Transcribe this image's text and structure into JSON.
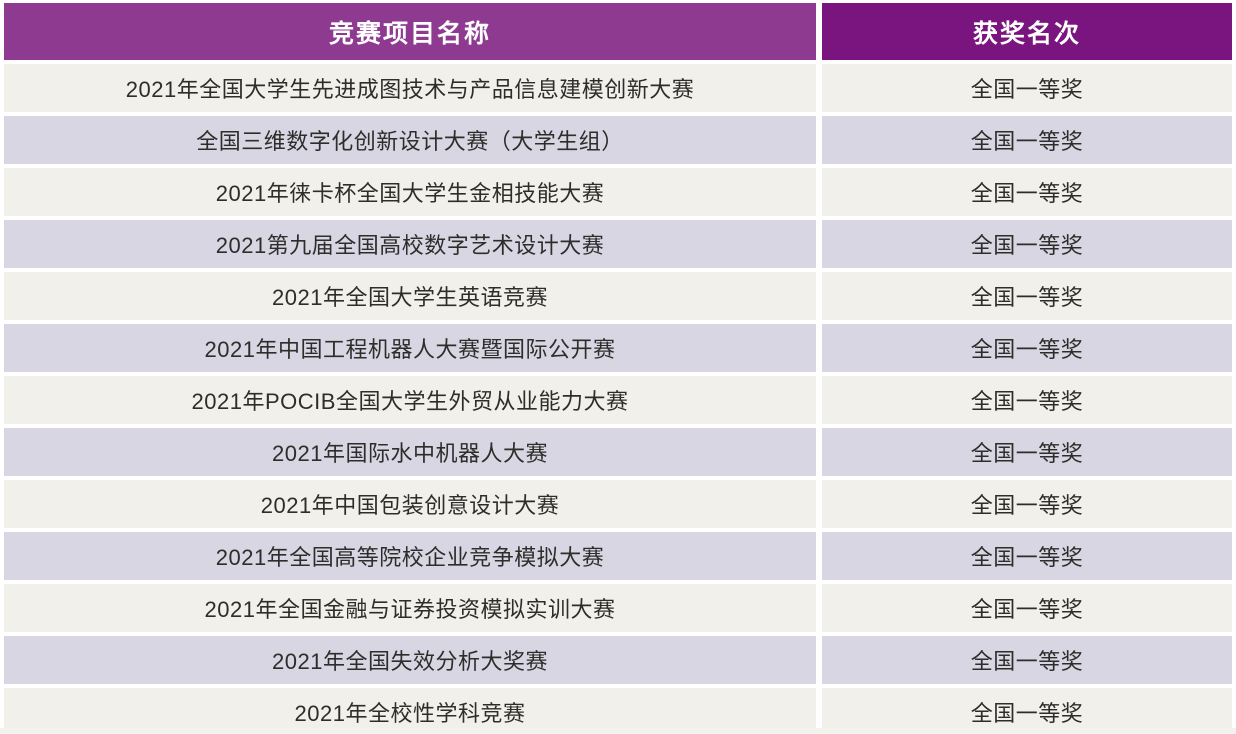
{
  "table": {
    "headers": {
      "name": "竞赛项目名称",
      "award": "获奖名次"
    },
    "rows": [
      {
        "name": "2021年全国大学生先进成图技术与产品信息建模创新大赛",
        "award": "全国一等奖"
      },
      {
        "name": "全国三维数字化创新设计大赛（大学生组）",
        "award": "全国一等奖"
      },
      {
        "name": "2021年徕卡杯全国大学生金相技能大赛",
        "award": "全国一等奖"
      },
      {
        "name": "2021第九届全国高校数字艺术设计大赛",
        "award": "全国一等奖"
      },
      {
        "name": "2021年全国大学生英语竞赛",
        "award": "全国一等奖"
      },
      {
        "name": "2021年中国工程机器人大赛暨国际公开赛",
        "award": "全国一等奖"
      },
      {
        "name": "2021年POCIB全国大学生外贸从业能力大赛",
        "award": "全国一等奖"
      },
      {
        "name": "2021年国际水中机器人大赛",
        "award": "全国一等奖"
      },
      {
        "name": "2021年中国包装创意设计大赛",
        "award": "全国一等奖"
      },
      {
        "name": "2021年全国高等院校企业竞争模拟大赛",
        "award": "全国一等奖"
      },
      {
        "name": "2021年全国金融与证券投资模拟实训大赛",
        "award": "全国一等奖"
      },
      {
        "name": "2021年全国失效分析大奖赛",
        "award": "全国一等奖"
      },
      {
        "name": "2021年全校性学科竞赛",
        "award": "全国一等奖"
      }
    ]
  },
  "colors": {
    "header_left_bg": "#8e3a90",
    "header_right_bg": "#7a1580",
    "row_odd_bg": "#f1f0eb",
    "row_even_bg": "#d7d6e2",
    "header_text": "#ffffff",
    "cell_text": "#2e2d2b",
    "gap": "#ffffff"
  },
  "chart_data": {
    "type": "table",
    "columns": [
      "竞赛项目名称",
      "获奖名次"
    ],
    "rows": [
      [
        "2021年全国大学生先进成图技术与产品信息建模创新大赛",
        "全国一等奖"
      ],
      [
        "全国三维数字化创新设计大赛（大学生组）",
        "全国一等奖"
      ],
      [
        "2021年徕卡杯全国大学生金相技能大赛",
        "全国一等奖"
      ],
      [
        "2021第九届全国高校数字艺术设计大赛",
        "全国一等奖"
      ],
      [
        "2021年全国大学生英语竞赛",
        "全国一等奖"
      ],
      [
        "2021年中国工程机器人大赛暨国际公开赛",
        "全国一等奖"
      ],
      [
        "2021年POCIB全国大学生外贸从业能力大赛",
        "全国一等奖"
      ],
      [
        "2021年国际水中机器人大赛",
        "全国一等奖"
      ],
      [
        "2021年中国包装创意设计大赛",
        "全国一等奖"
      ],
      [
        "2021年全国高等院校企业竞争模拟大赛",
        "全国一等奖"
      ],
      [
        "2021年全国金融与证券投资模拟实训大赛",
        "全国一等奖"
      ],
      [
        "2021年全国失效分析大奖赛",
        "全国一等奖"
      ],
      [
        "2021年全校性学科竞赛",
        "全国一等奖"
      ]
    ]
  }
}
